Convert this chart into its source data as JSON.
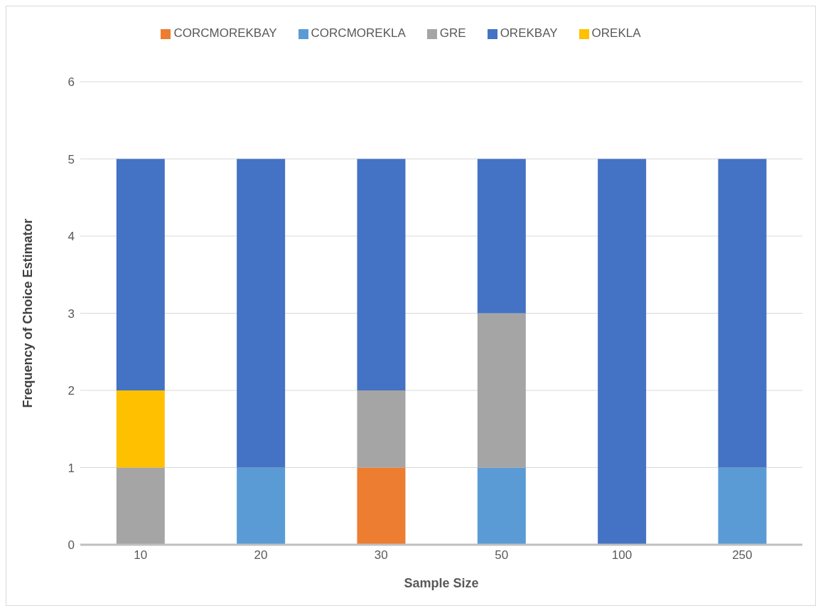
{
  "chart_data": {
    "type": "bar",
    "stacked": true,
    "xlabel": "Sample Size",
    "ylabel": "Frequency of Choice Estimator",
    "categories": [
      "10",
      "20",
      "30",
      "50",
      "100",
      "250"
    ],
    "series": [
      {
        "name": "CORCMOREKLA",
        "color": "#5b9bd5",
        "values": [
          0,
          1,
          0,
          1,
          0,
          1
        ]
      },
      {
        "name": "CORCMOREKBAY",
        "color": "#ed7d31",
        "values": [
          0,
          0,
          1,
          0,
          0,
          0
        ]
      },
      {
        "name": "GRE",
        "color": "#a5a5a5",
        "values": [
          1,
          0,
          1,
          2,
          0,
          0
        ]
      },
      {
        "name": "OREKLA",
        "color": "#ffc000",
        "values": [
          1,
          0,
          0,
          0,
          0,
          0
        ]
      },
      {
        "name": "OREKBAY",
        "color": "#4472c4",
        "values": [
          3,
          4,
          3,
          2,
          5,
          4
        ]
      }
    ],
    "ylim": [
      0,
      6
    ],
    "yticks": [
      0,
      1,
      2,
      3,
      4,
      5,
      6
    ],
    "grid": "y",
    "legend": "top"
  }
}
